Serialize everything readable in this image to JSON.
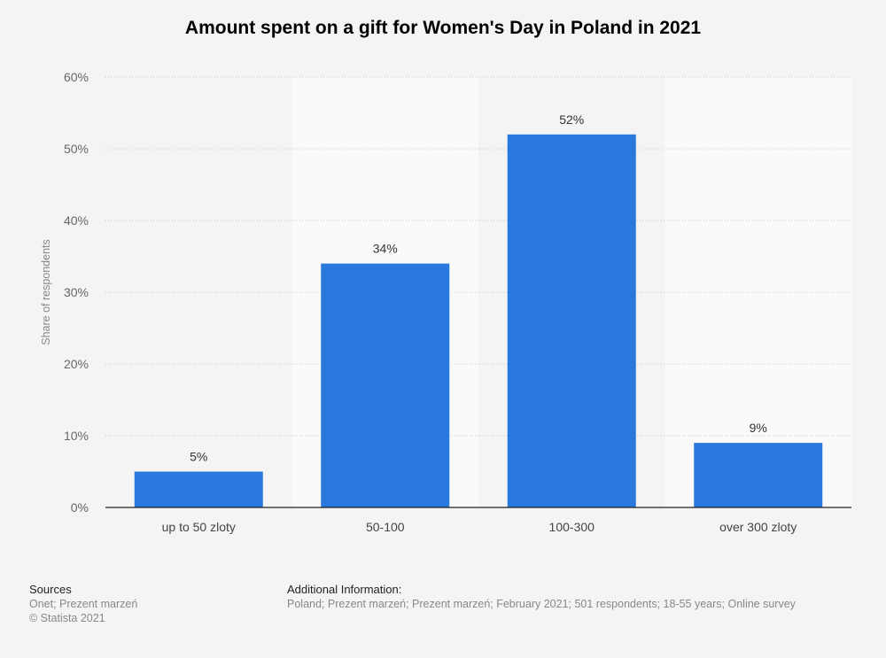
{
  "chart_data": {
    "type": "bar",
    "title": "Amount spent on a gift for Women's Day in Poland in 2021",
    "xlabel": "",
    "ylabel": "Share of respondents",
    "categories": [
      "up to 50 zloty",
      "50-100",
      "100-300",
      "over 300 zloty"
    ],
    "values": [
      5,
      34,
      52,
      9
    ],
    "value_labels": [
      "5%",
      "34%",
      "52%",
      "9%"
    ],
    "ylim": [
      0,
      60
    ],
    "yticks": [
      0,
      10,
      20,
      30,
      40,
      50,
      60
    ],
    "ytick_labels": [
      "0%",
      "10%",
      "20%",
      "30%",
      "40%",
      "50%",
      "60%"
    ],
    "grid": true,
    "bar_color": "#2878dd"
  },
  "footer": {
    "sources_heading": "Sources",
    "sources_line1": "Onet; Prezent marzeń",
    "sources_line2": "© Statista 2021",
    "additional_heading": "Additional Information:",
    "additional_text": "Poland; Prezent marzeń; Prezent marzeń; February 2021; 501 respondents; 18-55 years; Online survey"
  }
}
